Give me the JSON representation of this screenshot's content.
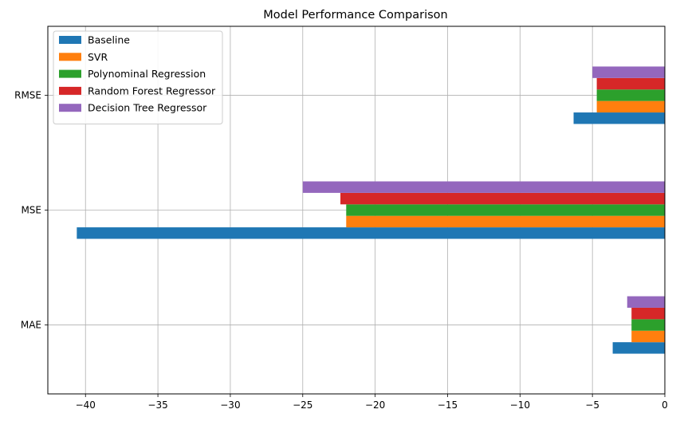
{
  "chart_data": {
    "type": "bar",
    "orientation": "horizontal",
    "title": "Model Performance Comparison",
    "xlabel": "",
    "ylabel": "",
    "categories": [
      "MAE",
      "MSE",
      "RMSE"
    ],
    "xlim": [
      -42.6,
      0
    ],
    "xticks": [
      -40,
      -35,
      -30,
      -25,
      -20,
      -15,
      -10,
      -5,
      0
    ],
    "xtick_labels": [
      "−40",
      "−35",
      "−30",
      "−25",
      "−20",
      "−15",
      "−10",
      "−5",
      "0"
    ],
    "grid": true,
    "legend_position": "top-left",
    "series": [
      {
        "name": "Baseline",
        "color": "#1f77b4",
        "values": [
          -3.6,
          -40.6,
          -6.3
        ]
      },
      {
        "name": "SVR",
        "color": "#ff7f0e",
        "values": [
          -2.3,
          -22.0,
          -4.7
        ]
      },
      {
        "name": "Polynominal Regression",
        "color": "#2ca02c",
        "values": [
          -2.3,
          -22.0,
          -4.7
        ]
      },
      {
        "name": "Random Forest Regressor",
        "color": "#d62728",
        "values": [
          -2.3,
          -22.4,
          -4.7
        ]
      },
      {
        "name": "Decision Tree Regressor",
        "color": "#9467bd",
        "values": [
          -2.6,
          -25.0,
          -5.0
        ]
      }
    ]
  }
}
